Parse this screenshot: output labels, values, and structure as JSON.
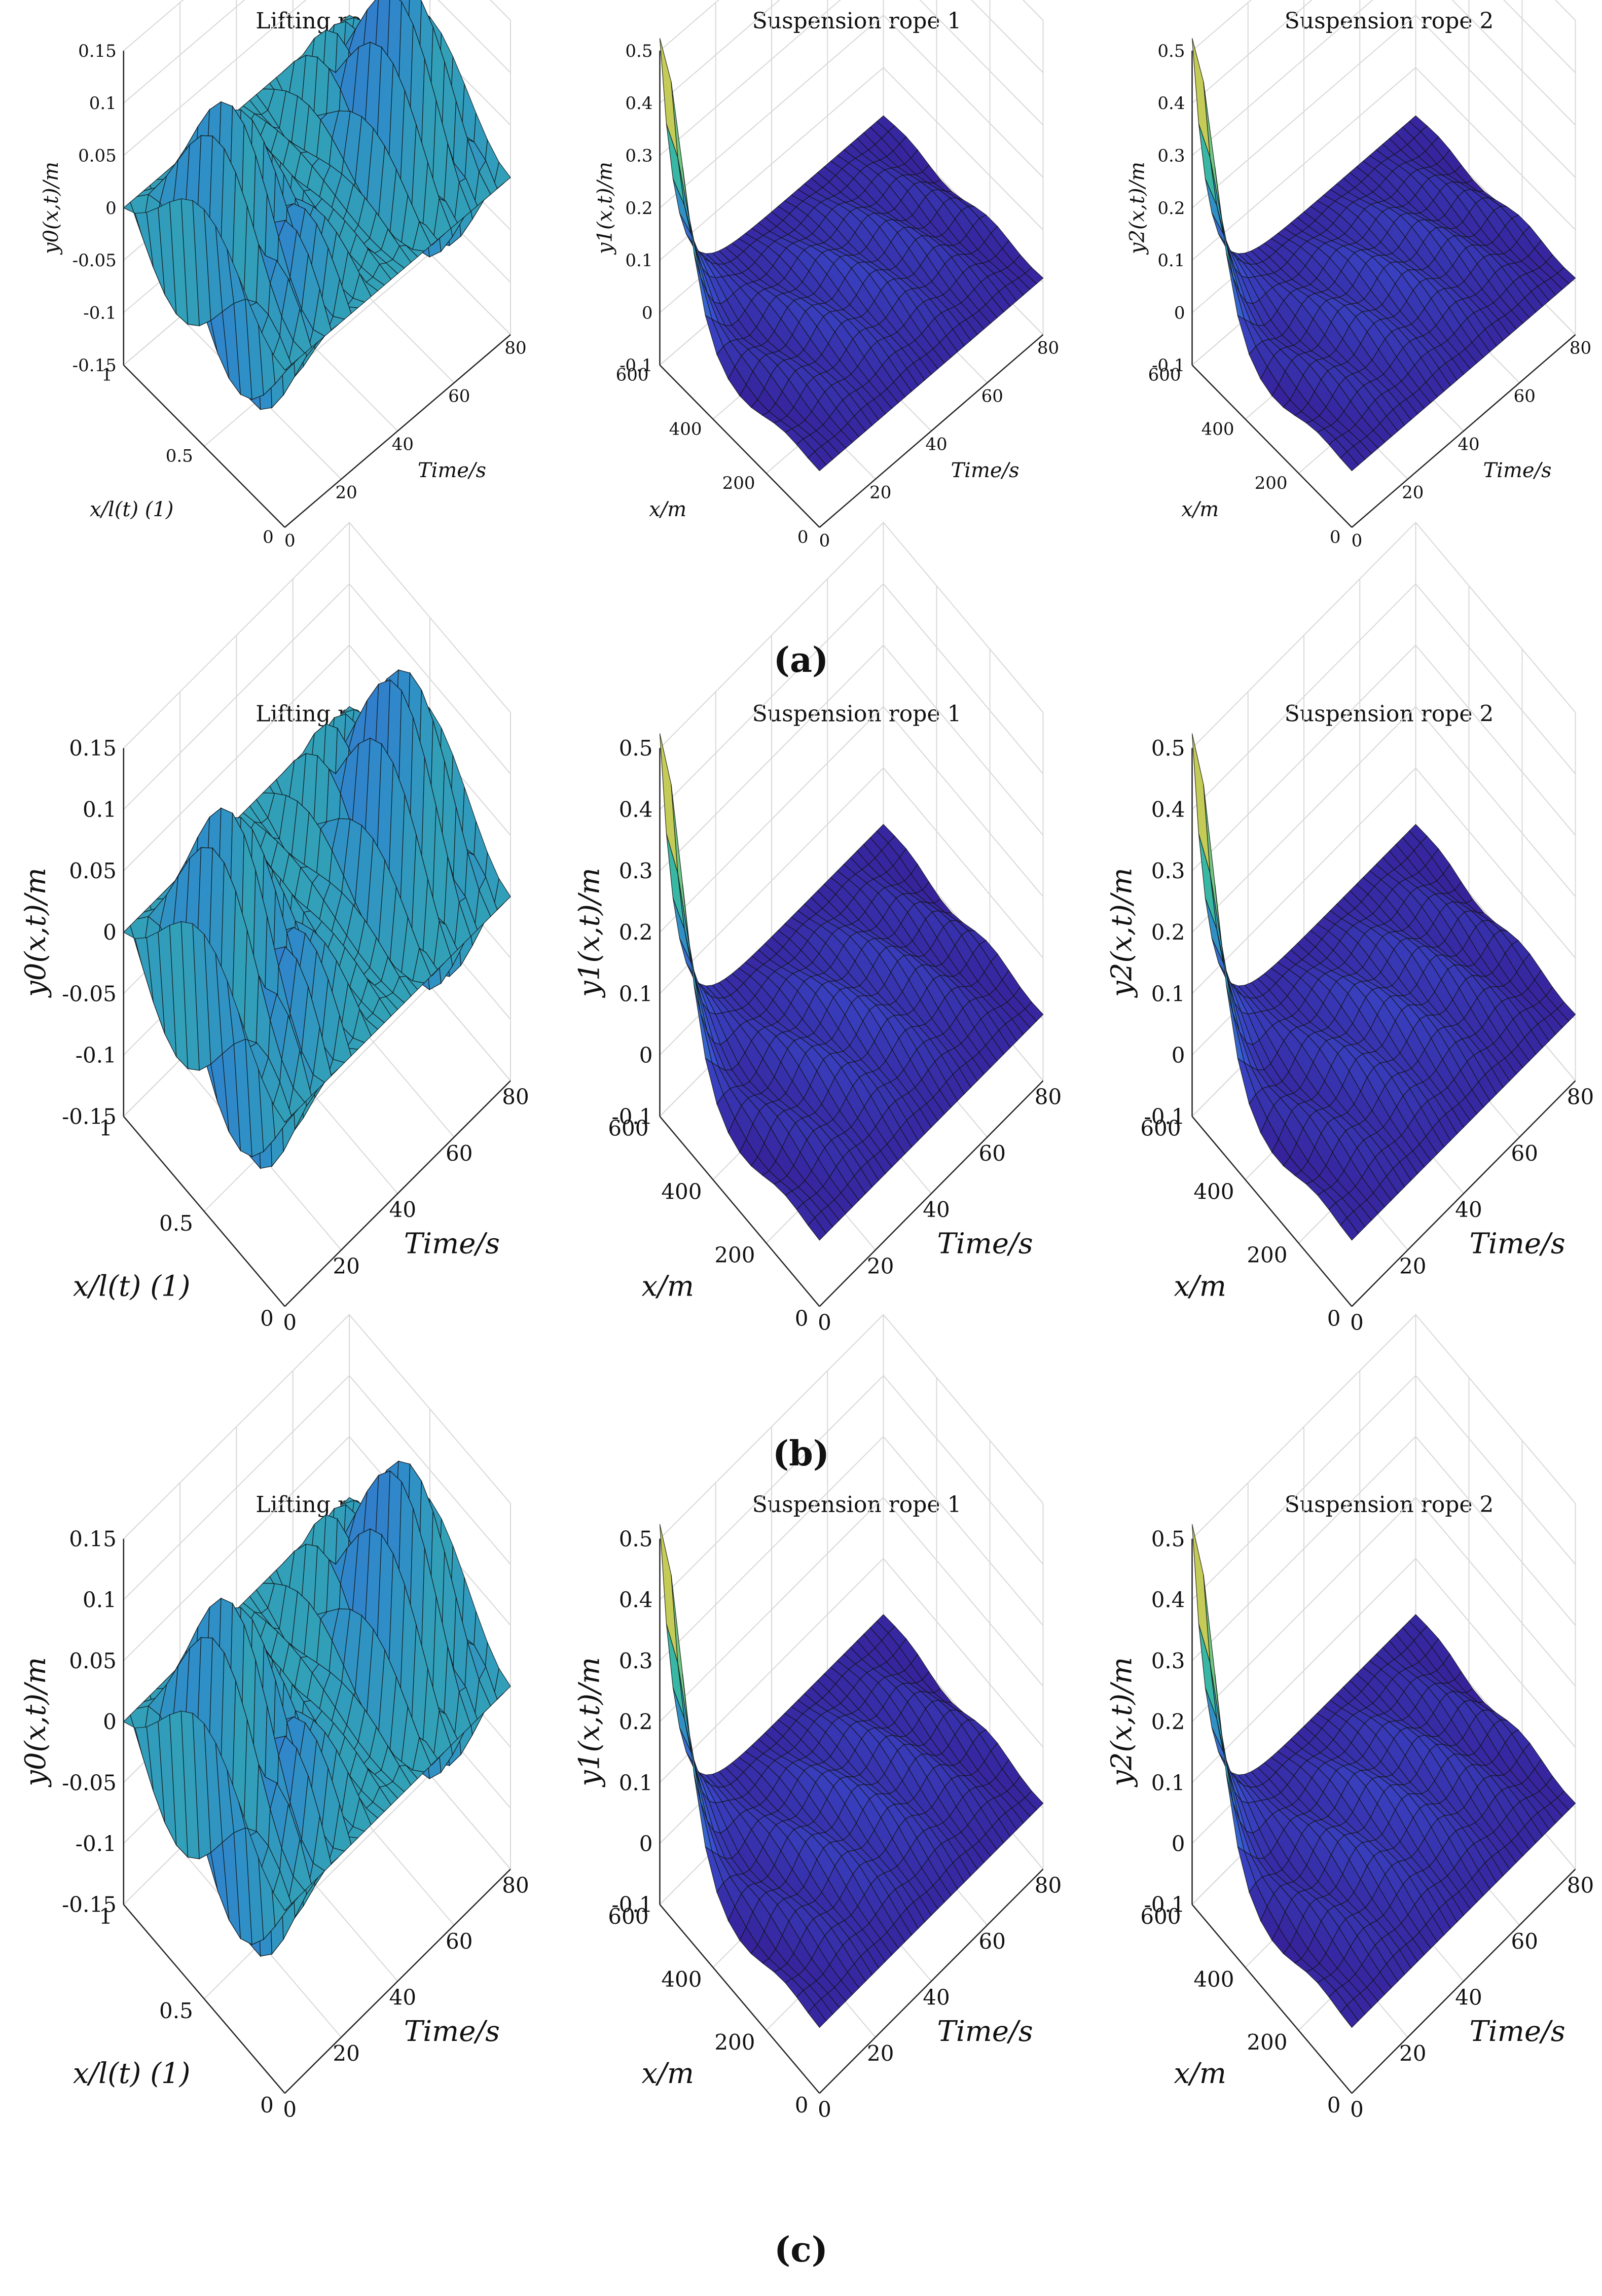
{
  "panel_labels": [
    "(a)",
    "(b)",
    "(c)"
  ],
  "chart_data": [
    {
      "panel": "a",
      "type": "surface3d",
      "title": "Lifting rope",
      "zlabel": "y0(x,t)/m",
      "xlabel": "x/l(t) (1)",
      "ylabel": "Time/s",
      "zticks": [
        "0.15",
        "0.1",
        "0.05",
        "0",
        "-0.05",
        "-0.1",
        "-0.15"
      ],
      "xticks": [
        "0",
        "0.5",
        "1"
      ],
      "tticks": [
        "0",
        "20",
        "40",
        "60",
        "80"
      ],
      "zlim": [
        -0.15,
        0.15
      ],
      "xlim": [
        0,
        1
      ],
      "tlim": [
        0,
        80
      ],
      "colormap": [
        "#35198f",
        "#3a4fd1",
        "#2f8cc9",
        "#35b6a6",
        "#9fd36b",
        "#f2c23e"
      ]
    },
    {
      "panel": "a",
      "type": "surface3d",
      "title": "Suspension rope 1",
      "zlabel": "y1(x,t)/m",
      "xlabel": "x/m",
      "ylabel": "Time/s",
      "zticks": [
        "0.5",
        "0.4",
        "0.3",
        "0.2",
        "0.1",
        "0",
        "-0.1"
      ],
      "xticks": [
        "0",
        "200",
        "400",
        "600"
      ],
      "tticks": [
        "0",
        "20",
        "40",
        "60",
        "80"
      ],
      "zlim": [
        -0.1,
        0.5
      ],
      "xlim": [
        0,
        600
      ],
      "tlim": [
        0,
        80
      ]
    },
    {
      "panel": "a",
      "type": "surface3d",
      "title": "Suspension rope 2",
      "zlabel": "y2(x,t)/m",
      "xlabel": "x/m",
      "ylabel": "Time/s",
      "zticks": [
        "0.5",
        "0.4",
        "0.3",
        "0.2",
        "0.1",
        "0",
        "-0.1"
      ],
      "xticks": [
        "0",
        "200",
        "400",
        "600"
      ],
      "tticks": [
        "0",
        "20",
        "40",
        "60",
        "80"
      ],
      "zlim": [
        -0.1,
        0.5
      ],
      "xlim": [
        0,
        600
      ],
      "tlim": [
        0,
        80
      ]
    },
    {
      "panel": "b",
      "type": "surface3d",
      "title": "Lifting rope",
      "zlabel": "y0(x,t)/m",
      "xlabel": "x/l(t) (1)",
      "ylabel": "Time/s",
      "zticks": [
        "0.15",
        "0.1",
        "0.05",
        "0",
        "-0.05",
        "-0.1",
        "-0.15"
      ],
      "xticks": [
        "0",
        "0.5",
        "1"
      ],
      "tticks": [
        "0",
        "20",
        "40",
        "60",
        "80"
      ],
      "zlim": [
        -0.15,
        0.15
      ],
      "xlim": [
        0,
        1
      ],
      "tlim": [
        0,
        80
      ]
    },
    {
      "panel": "b",
      "type": "surface3d",
      "title": "Suspension rope 1",
      "zlabel": "y1(x,t)/m",
      "xlabel": "x/m",
      "ylabel": "Time/s",
      "zticks": [
        "0.5",
        "0.4",
        "0.3",
        "0.2",
        "0.1",
        "0",
        "-0.1"
      ],
      "xticks": [
        "0",
        "200",
        "400",
        "600"
      ],
      "tticks": [
        "0",
        "20",
        "40",
        "60",
        "80"
      ],
      "zlim": [
        -0.1,
        0.5
      ],
      "xlim": [
        0,
        600
      ],
      "tlim": [
        0,
        80
      ]
    },
    {
      "panel": "b",
      "type": "surface3d",
      "title": "Suspension rope 2",
      "zlabel": "y2(x,t)/m",
      "xlabel": "x/m",
      "ylabel": "Time/s",
      "zticks": [
        "0.5",
        "0.4",
        "0.3",
        "0.2",
        "0.1",
        "0",
        "-0.1"
      ],
      "xticks": [
        "0",
        "200",
        "400",
        "600"
      ],
      "tticks": [
        "0",
        "20",
        "40",
        "60",
        "80"
      ],
      "zlim": [
        -0.1,
        0.5
      ],
      "xlim": [
        0,
        600
      ],
      "tlim": [
        0,
        80
      ]
    },
    {
      "panel": "c",
      "type": "surface3d",
      "title": "Lifting rope",
      "zlabel": "y0(x,t)/m",
      "xlabel": "x/l(t) (1)",
      "ylabel": "Time/s",
      "zticks": [
        "0.15",
        "0.1",
        "0.05",
        "0",
        "-0.05",
        "-0.1",
        "-0.15"
      ],
      "xticks": [
        "0",
        "0.5",
        "1"
      ],
      "tticks": [
        "0",
        "20",
        "40",
        "60",
        "80"
      ],
      "zlim": [
        -0.15,
        0.15
      ],
      "xlim": [
        0,
        1
      ],
      "tlim": [
        0,
        80
      ]
    },
    {
      "panel": "c",
      "type": "surface3d",
      "title": "Suspension rope 1",
      "zlabel": "y1(x,t)/m",
      "xlabel": "x/m",
      "ylabel": "Time/s",
      "zticks": [
        "0.5",
        "0.4",
        "0.3",
        "0.2",
        "0.1",
        "0",
        "-0.1"
      ],
      "xticks": [
        "0",
        "200",
        "400",
        "600"
      ],
      "tticks": [
        "0",
        "20",
        "40",
        "60",
        "80"
      ],
      "zlim": [
        -0.1,
        0.5
      ],
      "xlim": [
        0,
        600
      ],
      "tlim": [
        0,
        80
      ]
    },
    {
      "panel": "c",
      "type": "surface3d",
      "title": "Suspension rope 2",
      "zlabel": "y2(x,t)/m",
      "xlabel": "x/m",
      "ylabel": "Time/s",
      "zticks": [
        "0.5",
        "0.4",
        "0.3",
        "0.2",
        "0.1",
        "0",
        "-0.1"
      ],
      "xticks": [
        "0",
        "200",
        "400",
        "600"
      ],
      "tticks": [
        "0",
        "20",
        "40",
        "60",
        "80"
      ],
      "zlim": [
        -0.1,
        0.5
      ],
      "xlim": [
        0,
        600
      ],
      "tlim": [
        0,
        80
      ]
    }
  ]
}
